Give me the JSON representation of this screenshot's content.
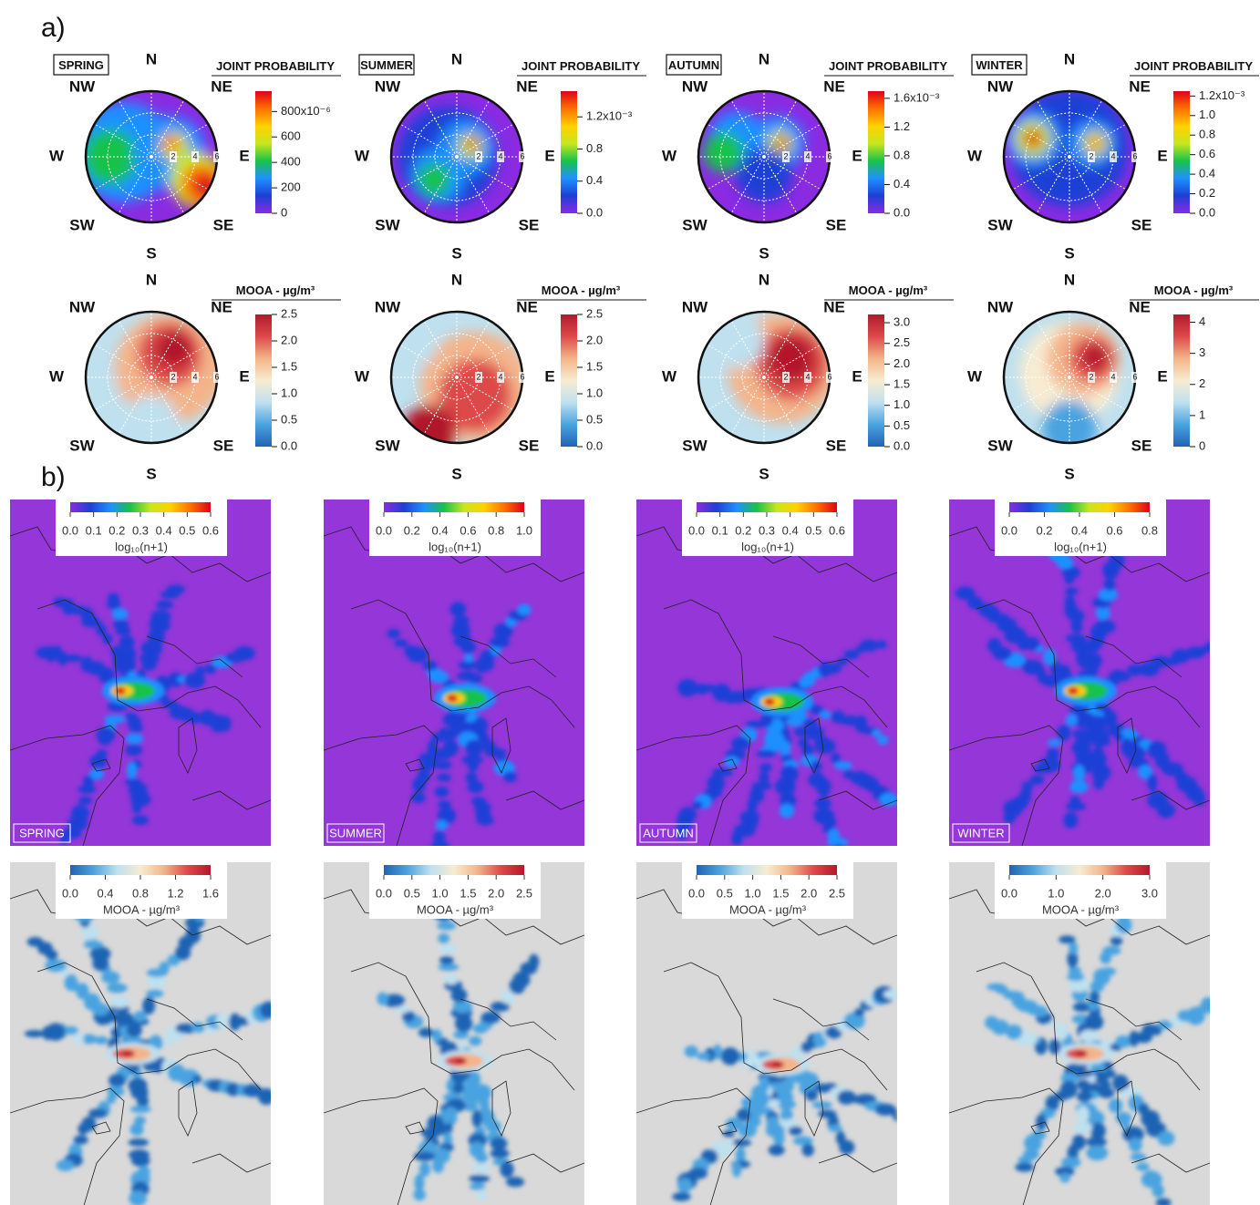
{
  "panel_labels": [
    "a)",
    "b)"
  ],
  "compass": [
    "N",
    "NE",
    "E",
    "SE",
    "S",
    "SW",
    "W",
    "NW"
  ],
  "radial_ticks": [
    2,
    4,
    6
  ],
  "colormaps": {
    "probability": [
      "#8a2be2",
      "#1f3fd6",
      "#1e90ff",
      "#19c24a",
      "#c8e61e",
      "#ffd000",
      "#ff7000",
      "#e0001a"
    ],
    "mooa": [
      "#1f63b4",
      "#4aa3e0",
      "#bfe0ee",
      "#f7ecd2",
      "#f4b48a",
      "#dd4a4a",
      "#b2182b"
    ]
  },
  "map_backgrounds": {
    "probability": "#9436d8",
    "mooa": "#d9d9d9"
  },
  "seasons": [
    {
      "name": "SPRING",
      "joint_probability": {
        "title": "JOINT PROBABILITY",
        "lim": [
          0,
          960
        ],
        "ticks": [
          0,
          200,
          400,
          600,
          {
            "value": 800,
            "label": "800x10⁻⁶"
          }
        ]
      },
      "mooa_polar": {
        "title": "MOOA - µg/m³",
        "lim": [
          0,
          2.5
        ],
        "ticks": [
          {
            "value": 0,
            "label": "0.0"
          },
          0.5,
          {
            "value": 1,
            "label": "1.0"
          },
          1.5,
          {
            "value": 2,
            "label": "2.0"
          },
          2.5
        ]
      },
      "trajectory_map": {
        "label": "log₁₀(n+1)",
        "lim": [
          0,
          0.6
        ],
        "ticks": [
          {
            "value": 0,
            "label": "0.0"
          },
          0.1,
          0.2,
          0.3,
          0.4,
          0.5,
          0.6
        ]
      },
      "mooa_map": {
        "label": "MOOA - µg/m³",
        "lim": [
          0,
          1.6
        ],
        "ticks": [
          {
            "value": 0,
            "label": "0.0"
          },
          0.4,
          0.8,
          1.2,
          1.6
        ]
      }
    },
    {
      "name": "SUMMER",
      "joint_probability": {
        "title": "JOINT PROBABILITY",
        "lim": [
          0,
          1.52
        ],
        "ticks": [
          {
            "value": 0,
            "label": "0.0"
          },
          0.4,
          0.8,
          {
            "value": 1.2,
            "label": "1.2x10⁻³"
          }
        ]
      },
      "mooa_polar": {
        "title": "MOOA - µg/m³",
        "lim": [
          0,
          2.5
        ],
        "ticks": [
          {
            "value": 0,
            "label": "0.0"
          },
          0.5,
          {
            "value": 1,
            "label": "1.0"
          },
          1.5,
          {
            "value": 2,
            "label": "2.0"
          },
          2.5
        ]
      },
      "trajectory_map": {
        "label": "log₁₀(n+1)",
        "lim": [
          0,
          1
        ],
        "ticks": [
          {
            "value": 0,
            "label": "0.0"
          },
          0.2,
          0.4,
          0.6,
          0.8,
          {
            "value": 1,
            "label": "1.0"
          }
        ]
      },
      "mooa_map": {
        "label": "MOOA - µg/m³",
        "lim": [
          0,
          2.5
        ],
        "ticks": [
          {
            "value": 0,
            "label": "0.0"
          },
          0.5,
          {
            "value": 1,
            "label": "1.0"
          },
          1.5,
          {
            "value": 2,
            "label": "2.0"
          },
          2.5
        ]
      }
    },
    {
      "name": "AUTUMN",
      "joint_probability": {
        "title": "JOINT PROBABILITY",
        "lim": [
          0,
          1.7
        ],
        "ticks": [
          {
            "value": 0,
            "label": "0.0"
          },
          0.4,
          0.8,
          1.2,
          {
            "value": 1.6,
            "label": "1.6x10⁻³"
          }
        ]
      },
      "mooa_polar": {
        "title": "MOOA - µg/m³",
        "lim": [
          0,
          3.2
        ],
        "ticks": [
          {
            "value": 0,
            "label": "0.0"
          },
          0.5,
          {
            "value": 1,
            "label": "1.0"
          },
          1.5,
          {
            "value": 2,
            "label": "2.0"
          },
          2.5,
          {
            "value": 3,
            "label": "3.0"
          }
        ]
      },
      "trajectory_map": {
        "label": "log₁₀(n+1)",
        "lim": [
          0,
          0.6
        ],
        "ticks": [
          {
            "value": 0,
            "label": "0.0"
          },
          0.1,
          0.2,
          0.3,
          0.4,
          0.5,
          0.6
        ]
      },
      "mooa_map": {
        "label": "MOOA - µg/m³",
        "lim": [
          0,
          2.5
        ],
        "ticks": [
          {
            "value": 0,
            "label": "0.0"
          },
          0.5,
          {
            "value": 1,
            "label": "1.0"
          },
          1.5,
          {
            "value": 2,
            "label": "2.0"
          },
          2.5
        ]
      }
    },
    {
      "name": "WINTER",
      "joint_probability": {
        "title": "JOINT PROBABILITY",
        "lim": [
          0,
          1.25
        ],
        "ticks": [
          {
            "value": 0,
            "label": "0.0"
          },
          0.2,
          0.4,
          0.6,
          0.8,
          {
            "value": 1,
            "label": "1.0"
          },
          {
            "value": 1.2,
            "label": "1.2x10⁻³"
          }
        ]
      },
      "mooa_polar": {
        "title": "MOOA - µg/m³",
        "lim": [
          0,
          4.25
        ],
        "ticks": [
          0,
          1,
          2,
          3,
          4
        ]
      },
      "trajectory_map": {
        "label": "log₁₀(n+1)",
        "lim": [
          0,
          0.8
        ],
        "ticks": [
          {
            "value": 0,
            "label": "0.0"
          },
          0.2,
          0.4,
          0.6,
          0.8
        ]
      },
      "mooa_map": {
        "label": "MOOA - µg/m³",
        "lim": [
          0,
          3
        ],
        "ticks": [
          {
            "value": 0,
            "label": "0.0"
          },
          {
            "value": 1,
            "label": "1.0"
          },
          {
            "value": 2,
            "label": "2.0"
          },
          {
            "value": 3,
            "label": "3.0"
          }
        ]
      }
    }
  ]
}
